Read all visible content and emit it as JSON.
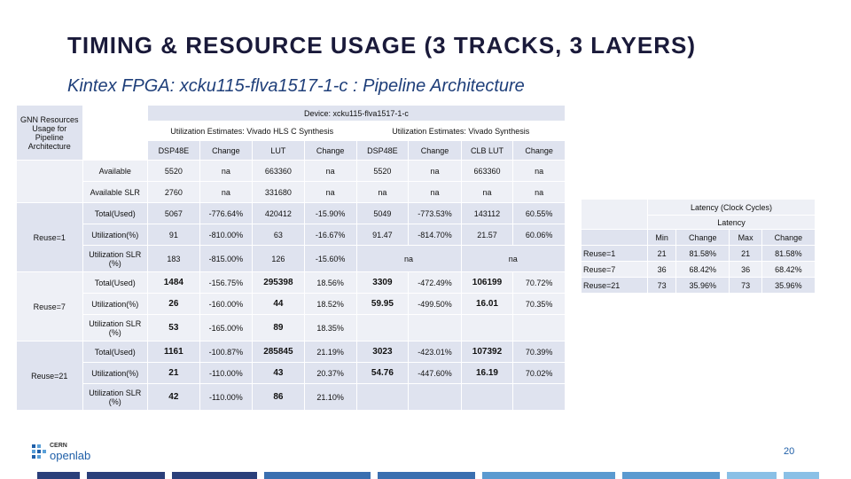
{
  "title": "TIMING & RESOURCE USAGE (3 TRACKS, 3 LAYERS)",
  "subtitle": "Kintex FPGA:  xcku115-flva1517-1-c : Pipeline Architecture",
  "main_table": {
    "device": "Device: xcku115-flva1517-1-c",
    "corner_label": "GNN Resources Usage for Pipeline Architecture",
    "group_hls": "Utilization Estimates: Vivado HLS C Synthesis",
    "group_vivado": "Utilization Estimates: Vivado  Synthesis",
    "columns": [
      "DSP48E",
      "Change",
      "LUT",
      "Change",
      "DSP48E",
      "Change",
      "CLB LUT",
      "Change"
    ],
    "available_rows": [
      {
        "label": "Available",
        "cells": [
          "5520",
          "na",
          "663360",
          "na",
          "5520",
          "na",
          "663360",
          "na"
        ]
      },
      {
        "label": "Available SLR",
        "cells": [
          "2760",
          "na",
          "331680",
          "na",
          "na",
          "na",
          "na",
          "na"
        ]
      }
    ],
    "groups": [
      {
        "name": "Reuse=1",
        "rows": [
          {
            "label": "Total(Used)",
            "cells": [
              "5067",
              "-776.64%",
              "420412",
              "-15.90%",
              "5049",
              "-773.53%",
              "143112",
              "60.55%"
            ]
          },
          {
            "label": "Utilization(%)",
            "cells": [
              "91",
              "-810.00%",
              "63",
              "-16.67%",
              "91.47",
              "-814.70%",
              "21.57",
              "60.06%"
            ]
          },
          {
            "label": "Utilization SLR (%)",
            "cells": [
              "183",
              "-815.00%",
              "126",
              "-15.60%",
              "na",
              "",
              "na",
              ""
            ]
          }
        ]
      },
      {
        "name": "Reuse=7",
        "rows": [
          {
            "label": "Total(Used)",
            "cells": [
              "1484",
              "-156.75%",
              "295398",
              "18.56%",
              "3309",
              "-472.49%",
              "106199",
              "70.72%"
            ]
          },
          {
            "label": "Utilization(%)",
            "cells": [
              "26",
              "-160.00%",
              "44",
              "18.52%",
              "59.95",
              "-499.50%",
              "16.01",
              "70.35%"
            ]
          },
          {
            "label": "Utilization SLR (%)",
            "cells": [
              "53",
              "-165.00%",
              "89",
              "18.35%",
              "",
              "",
              "",
              ""
            ]
          }
        ]
      },
      {
        "name": "Reuse=21",
        "rows": [
          {
            "label": "Total(Used)",
            "cells": [
              "1161",
              "-100.87%",
              "285845",
              "21.19%",
              "3023",
              "-423.01%",
              "107392",
              "70.39%"
            ]
          },
          {
            "label": "Utilization(%)",
            "cells": [
              "21",
              "-110.00%",
              "43",
              "20.37%",
              "54.76",
              "-447.60%",
              "16.19",
              "70.02%"
            ]
          },
          {
            "label": "Utilization SLR (%)",
            "cells": [
              "42",
              "-110.00%",
              "86",
              "21.10%",
              "",
              "",
              "",
              ""
            ]
          }
        ]
      }
    ]
  },
  "latency_table": {
    "title": "Latency (Clock Cycles)",
    "subtitle": "Latency",
    "columns": [
      "Min",
      "Change",
      "Max",
      "Change"
    ],
    "rows": [
      {
        "label": "Reuse=1",
        "cells": [
          "21",
          "81.58%",
          "21",
          "81.58%"
        ]
      },
      {
        "label": "Reuse=7",
        "cells": [
          "36",
          "68.42%",
          "36",
          "68.42%"
        ]
      },
      {
        "label": "Reuse=21",
        "cells": [
          "73",
          "35.96%",
          "73",
          "35.96%"
        ]
      }
    ]
  },
  "footer": {
    "logo_top": "CERN",
    "logo_main": "openlab",
    "page_number": "20"
  }
}
